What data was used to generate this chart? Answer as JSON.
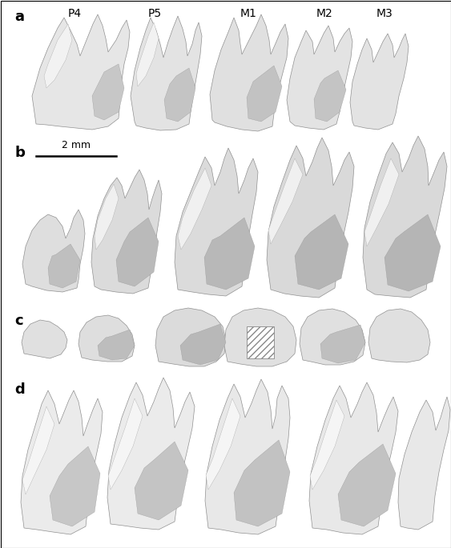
{
  "fig_width": 5.63,
  "fig_height": 6.85,
  "dpi": 100,
  "background_color": "#ffffff",
  "row_labels": [
    "a",
    "b",
    "c",
    "d"
  ],
  "row_label_fontsize": 13,
  "row_label_fontweight": "bold",
  "tooth_labels": [
    "P4",
    "P5",
    "M1",
    "M2",
    "M3"
  ],
  "tooth_label_fontsize": 10,
  "scalebar_text": "2 mm",
  "scalebar_fontsize": 9,
  "border_color": "#000000",
  "border_linewidth": 0.8
}
